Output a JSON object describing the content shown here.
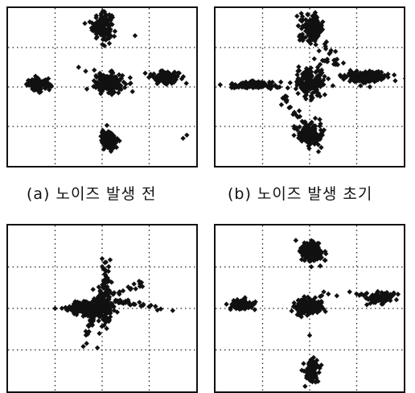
{
  "captions": {
    "a": "(a) 노이즈 발생 전",
    "b": "(b) 노이즈 발생 초기"
  },
  "colors": {
    "marker": "#111111",
    "grid": "#222222",
    "frame": "#111111"
  },
  "chart_data": [
    {
      "id": "a",
      "type": "scatter",
      "caption": "(a) 노이즈 발생 전",
      "grid": true,
      "xlim": [
        -2,
        2
      ],
      "ylim": [
        -2,
        2
      ],
      "clusters": [
        {
          "cx": 0,
          "cy": 1.55,
          "sx": 0.14,
          "sy": 0.22,
          "n": 160
        },
        {
          "cx": -1.35,
          "cy": 0.05,
          "sx": 0.16,
          "sy": 0.1,
          "n": 130
        },
        {
          "cx": 0.15,
          "cy": 0.1,
          "sx": 0.22,
          "sy": 0.16,
          "n": 170
        },
        {
          "cx": 1.35,
          "cy": 0.25,
          "sx": 0.2,
          "sy": 0.1,
          "n": 130
        },
        {
          "cx": 0.15,
          "cy": -1.35,
          "sx": 0.11,
          "sy": 0.18,
          "n": 130
        }
      ],
      "outliers": [
        [
          1.72,
          -1.3
        ],
        [
          1.8,
          -1.22
        ],
        [
          -0.35,
          0.4
        ],
        [
          0.7,
          1.3
        ],
        [
          -0.5,
          0.5
        ]
      ]
    },
    {
      "id": "b",
      "type": "scatter",
      "caption": "(b) 노이즈 발생 초기",
      "grid": true,
      "xlim": [
        -2,
        2
      ],
      "ylim": [
        -2,
        2
      ],
      "clusters": [
        {
          "cx": 0.05,
          "cy": 1.5,
          "sx": 0.16,
          "sy": 0.22,
          "n": 170
        },
        {
          "cx": -1.25,
          "cy": 0.05,
          "sx": 0.28,
          "sy": 0.06,
          "n": 150
        },
        {
          "cx": 0,
          "cy": 0.1,
          "sx": 0.22,
          "sy": 0.25,
          "n": 190
        },
        {
          "cx": 1.2,
          "cy": 0.25,
          "sx": 0.3,
          "sy": 0.09,
          "n": 160
        },
        {
          "cx": 0,
          "cy": -1.2,
          "sx": 0.18,
          "sy": 0.2,
          "n": 140
        }
      ],
      "streaks": [
        {
          "from": [
            -0.7,
            0.0
          ],
          "to": [
            -0.1,
            -1.0
          ],
          "n": 22
        },
        {
          "from": [
            0.3,
            0.7
          ],
          "to": [
            0.9,
            0.5
          ],
          "n": 14
        },
        {
          "from": [
            0.3,
            1.2
          ],
          "to": [
            0.6,
            0.5
          ],
          "n": 8
        }
      ],
      "outliers": [
        [
          0.55,
          0.9
        ],
        [
          0.65,
          0.3
        ],
        [
          -0.6,
          -0.45
        ]
      ]
    },
    {
      "id": "c",
      "type": "scatter",
      "caption": "",
      "grid": true,
      "xlim": [
        -2,
        2
      ],
      "ylim": [
        -2,
        2
      ],
      "clusters": [
        {
          "cx": -0.25,
          "cy": 0.0,
          "sx": 0.3,
          "sy": 0.12,
          "n": 220
        },
        {
          "cx": 0.05,
          "cy": 0.1,
          "sx": 0.12,
          "sy": 0.35,
          "n": 120
        }
      ],
      "streaks": [
        {
          "from": [
            0.1,
            0.3
          ],
          "to": [
            0.1,
            1.1
          ],
          "n": 25
        },
        {
          "from": [
            0.2,
            0.2
          ],
          "to": [
            1.3,
            0.0
          ],
          "n": 30
        },
        {
          "from": [
            -0.2,
            -0.2
          ],
          "to": [
            -0.4,
            -0.9
          ],
          "n": 20
        },
        {
          "from": [
            0.2,
            0.35
          ],
          "to": [
            0.9,
            0.6
          ],
          "n": 18
        }
      ],
      "outliers": [
        [
          -1.0,
          0.0
        ],
        [
          1.5,
          -0.05
        ],
        [
          0.0,
          1.2
        ],
        [
          -0.1,
          -0.95
        ]
      ]
    },
    {
      "id": "d",
      "type": "scatter",
      "caption": "",
      "grid": true,
      "xlim": [
        -2,
        2
      ],
      "ylim": [
        -2,
        2
      ],
      "clusters": [
        {
          "cx": 0.05,
          "cy": 1.35,
          "sx": 0.16,
          "sy": 0.18,
          "n": 150
        },
        {
          "cx": -1.45,
          "cy": 0.1,
          "sx": 0.18,
          "sy": 0.08,
          "n": 110
        },
        {
          "cx": -0.05,
          "cy": 0.05,
          "sx": 0.2,
          "sy": 0.15,
          "n": 150
        },
        {
          "cx": 1.5,
          "cy": 0.25,
          "sx": 0.2,
          "sy": 0.09,
          "n": 120
        },
        {
          "cx": 0.05,
          "cy": -1.5,
          "sx": 0.1,
          "sy": 0.16,
          "n": 110
        }
      ],
      "streaks": [
        {
          "from": [
            0.4,
            0.3
          ],
          "to": [
            1.2,
            0.35
          ],
          "n": 8
        }
      ],
      "outliers": [
        [
          0.85,
          0.4
        ],
        [
          0.3,
          0.4
        ],
        [
          0.0,
          -0.65
        ]
      ]
    }
  ]
}
